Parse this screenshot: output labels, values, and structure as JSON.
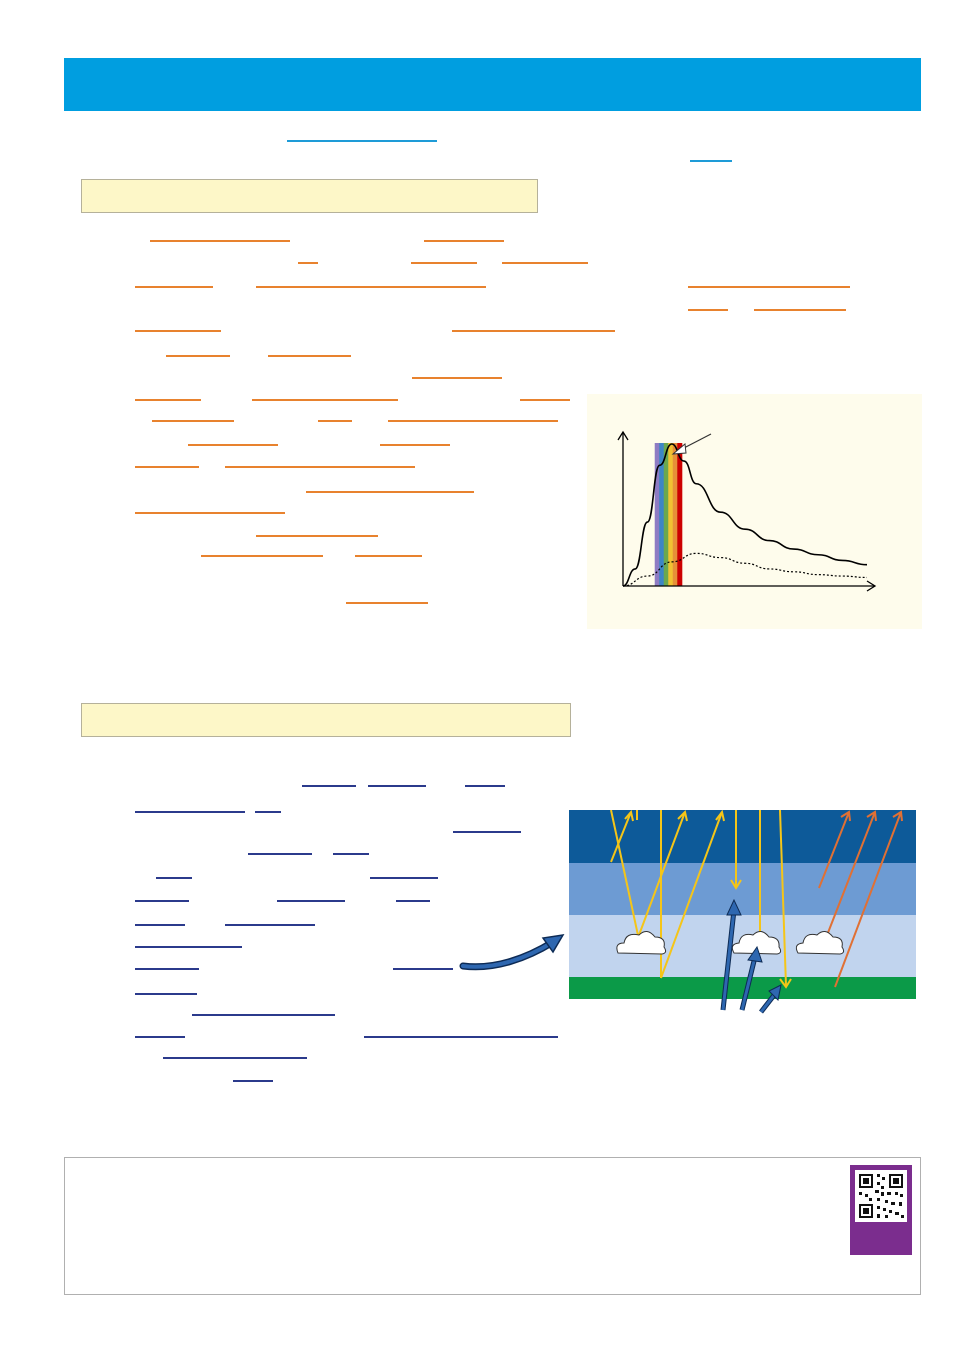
{
  "colors": {
    "banner": "#009ee0",
    "section_box": "#fdf7c8",
    "blank_cyan": "#1e9bd7",
    "blank_orange": "#e8822e",
    "blank_navy": "#2b3a8c",
    "chart_panel": "#fefcec",
    "layer_top": "#0d5a99",
    "layer_mid": "#6d9bd3",
    "layer_low": "#c1d4ee",
    "ground": "#0b9a48",
    "sun_ray": "#f5c518",
    "reflected_ray": "#e07034",
    "ir_ray": "#1f5ea8",
    "qr_card": "#7b2d8e"
  },
  "icons": {
    "qr": "qr-code-icon",
    "cloud": "cloud-icon",
    "arrow": "curved-arrow-icon"
  },
  "chart_data": {
    "type": "line",
    "title": "",
    "xlabel": "",
    "ylabel": "",
    "series": [
      {
        "x": [
          0,
          0.05,
          0.1,
          0.15,
          0.2,
          0.25,
          0.3,
          0.4,
          0.5,
          0.6,
          0.7,
          0.8,
          0.9,
          1.0
        ],
        "values": [
          0,
          0.12,
          0.45,
          0.85,
          1.0,
          0.88,
          0.72,
          0.52,
          0.4,
          0.32,
          0.26,
          0.22,
          0.18,
          0.15
        ]
      },
      {
        "x": [
          0,
          0.1,
          0.2,
          0.3,
          0.4,
          0.5,
          0.6,
          0.7,
          0.8,
          0.9,
          1.0
        ],
        "values": [
          0,
          0.07,
          0.17,
          0.23,
          0.2,
          0.16,
          0.12,
          0.1,
          0.08,
          0.07,
          0.06
        ]
      }
    ],
    "bands": [
      "#8e7cc3",
      "#3d85c6",
      "#6aa84f",
      "#f1c232",
      "#e69138",
      "#cc0000"
    ]
  }
}
